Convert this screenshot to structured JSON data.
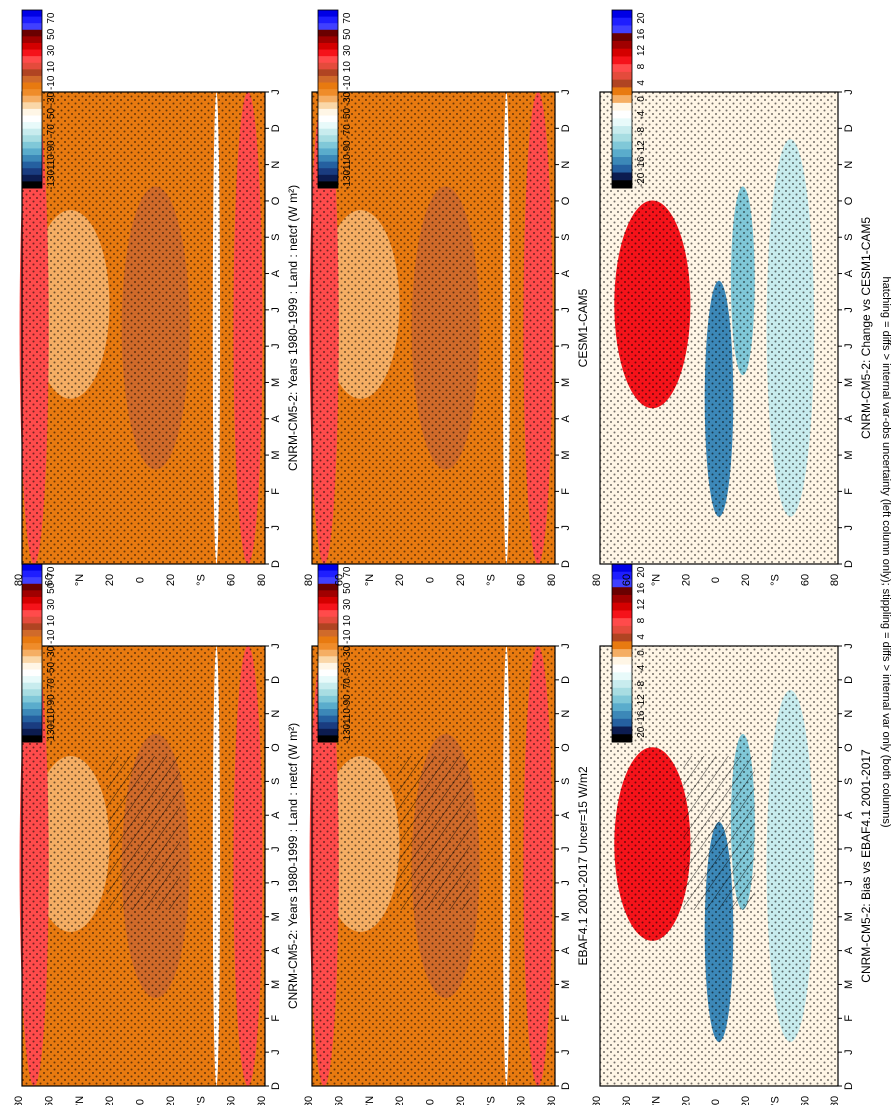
{
  "figure_note": "hatching = diffs > internal var-obs uncertainty (left column only); stippling = diffs > internal var only (both columns)",
  "chart_data": [
    {
      "type": "heatmap",
      "id": "p00",
      "title": "CNRM-CM5-2: Years 1980-1999 : Land : netcf (W m²)",
      "x_ticks": [
        "D",
        "J",
        "F",
        "M",
        "A",
        "M",
        "J",
        "J",
        "A",
        "S",
        "O",
        "N",
        "D",
        "J"
      ],
      "lat_ticks": [
        "80",
        "60",
        "°N",
        "20",
        "0",
        "20",
        "°S",
        "60",
        "80"
      ],
      "colorbar_labels": [
        "70",
        "50",
        "30",
        "10",
        "-10",
        "-30",
        "-50",
        "-70",
        "-90",
        "-110",
        "-130"
      ],
      "palette": "main",
      "hatching": true,
      "stippling": true
    },
    {
      "type": "heatmap",
      "id": "p01",
      "title": "CNRM-CM5-2: Years 1980-1999 : Land : netcf (W m²)",
      "x_ticks": [
        "D",
        "J",
        "F",
        "M",
        "A",
        "M",
        "J",
        "J",
        "A",
        "S",
        "O",
        "N",
        "D",
        "J"
      ],
      "lat_ticks": [
        "80",
        "60",
        "°N",
        "20",
        "0",
        "20",
        "°S",
        "60",
        "80"
      ],
      "colorbar_labels": [
        "70",
        "50",
        "30",
        "10",
        "-10",
        "-30",
        "-50",
        "-70",
        "-90",
        "-110",
        "-130"
      ],
      "palette": "main",
      "hatching": false,
      "stippling": true
    },
    {
      "type": "heatmap",
      "id": "p10",
      "title": "EBAF4.1 2001-2017 Uncer=15 W/m2",
      "x_ticks": [
        "D",
        "J",
        "F",
        "M",
        "A",
        "M",
        "J",
        "J",
        "A",
        "S",
        "O",
        "N",
        "D",
        "J"
      ],
      "lat_ticks": [
        "80",
        "60",
        "°N",
        "20",
        "0",
        "20",
        "°S",
        "60",
        "80"
      ],
      "colorbar_labels": [
        "70",
        "50",
        "30",
        "10",
        "-10",
        "-30",
        "-50",
        "-70",
        "-90",
        "-110",
        "-130"
      ],
      "palette": "main",
      "hatching": true,
      "stippling": true
    },
    {
      "type": "heatmap",
      "id": "p11",
      "title": "CESM1-CAM5",
      "x_ticks": [
        "D",
        "J",
        "F",
        "M",
        "A",
        "M",
        "J",
        "J",
        "A",
        "S",
        "O",
        "N",
        "D",
        "J"
      ],
      "lat_ticks": [
        "80",
        "60",
        "°N",
        "20",
        "0",
        "20",
        "°S",
        "60",
        "80"
      ],
      "colorbar_labels": [
        "70",
        "50",
        "30",
        "10",
        "-10",
        "-30",
        "-50",
        "-70",
        "-90",
        "-110",
        "-130"
      ],
      "palette": "main",
      "hatching": false,
      "stippling": true
    },
    {
      "type": "heatmap",
      "id": "p20",
      "title": "CNRM-CM5-2: Bias vs EBAF4.1 2001-2017",
      "x_ticks": [
        "D",
        "J",
        "F",
        "M",
        "A",
        "M",
        "J",
        "J",
        "A",
        "S",
        "O",
        "N",
        "D",
        "J"
      ],
      "lat_ticks": [
        "80",
        "60",
        "°N",
        "20",
        "0",
        "20",
        "°S",
        "60",
        "80"
      ],
      "colorbar_labels": [
        "20",
        "16",
        "12",
        "8",
        "4",
        "0",
        "-4",
        "-8",
        "-12",
        "-16",
        "-20"
      ],
      "palette": "diff",
      "hatching": true,
      "stippling": true
    },
    {
      "type": "heatmap",
      "id": "p21",
      "title": "CNRM-CM5-2: Change vs CESM1-CAM5",
      "x_ticks": [
        "D",
        "J",
        "F",
        "M",
        "A",
        "M",
        "J",
        "J",
        "A",
        "S",
        "O",
        "N",
        "D",
        "J"
      ],
      "lat_ticks": [
        "80",
        "60",
        "°N",
        "20",
        "0",
        "20",
        "°S",
        "60",
        "80"
      ],
      "colorbar_labels": [
        "20",
        "16",
        "12",
        "8",
        "4",
        "0",
        "-4",
        "-8",
        "-12",
        "-16",
        "-20"
      ],
      "palette": "diff",
      "hatching": false,
      "stippling": true
    }
  ],
  "colors": {
    "main_scale": [
      "#0000e6",
      "#1e1eff",
      "#4040ff",
      "#6a0000",
      "#a00000",
      "#d40000",
      "#f5131a",
      "#ff4b4b",
      "#e44b3c",
      "#b04422",
      "#d06a2a",
      "#e87a10",
      "#ef8c2a",
      "#f5ae64",
      "#fad7a8",
      "#fff6e6",
      "#ffffff",
      "#e8fafa",
      "#c8ecee",
      "#a8dde2",
      "#80c8d8",
      "#5aaccc",
      "#3c88b8",
      "#2560a0",
      "#1a3c80",
      "#0c1c50",
      "#000000"
    ],
    "diff_scale": [
      "#0000e6",
      "#1e1eff",
      "#4040ff",
      "#6a0000",
      "#a00000",
      "#d40000",
      "#f5131a",
      "#ff4b4b",
      "#e44b3c",
      "#b04422",
      "#e87a10",
      "#f5ae64",
      "#fff6e6",
      "#ffffff",
      "#e8fafa",
      "#c8ecee",
      "#a8dde2",
      "#80c8d8",
      "#5aaccc",
      "#3c88b8",
      "#2560a0",
      "#0c1c50",
      "#000000"
    ]
  }
}
